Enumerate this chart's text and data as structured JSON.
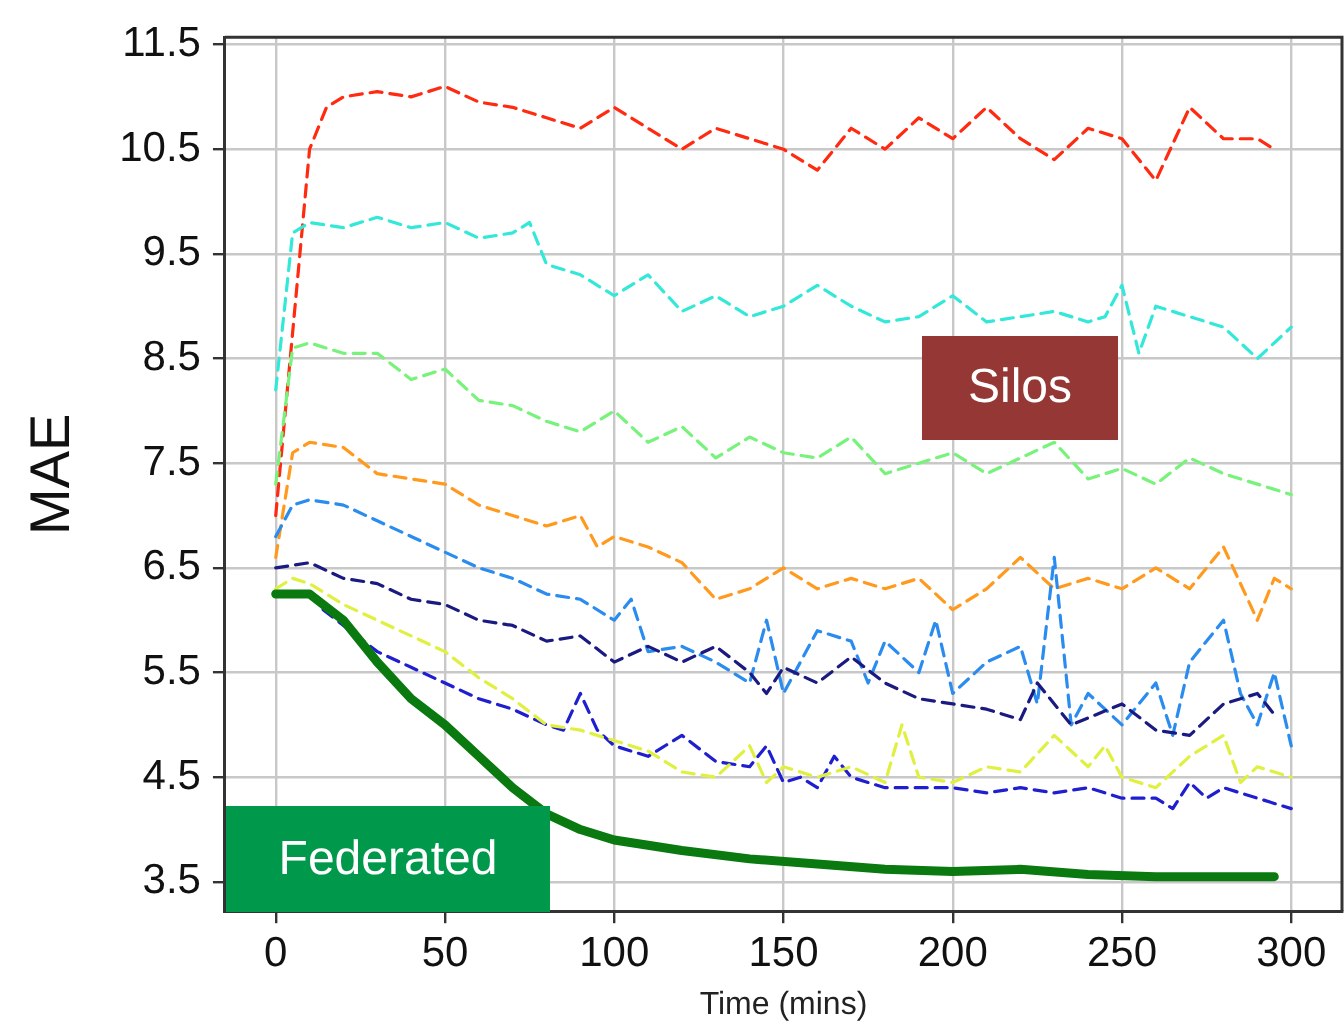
{
  "chart_data": {
    "type": "line",
    "xlabel": "Time (mins)",
    "ylabel": "MAE",
    "xlim": [
      -15,
      315
    ],
    "xticks": [
      0,
      50,
      100,
      150,
      200,
      250,
      300
    ],
    "ylim": [
      3.22,
      11.57
    ],
    "yticks": [
      3.5,
      4.5,
      5.5,
      6.5,
      7.5,
      8.5,
      9.5,
      10.5,
      11.5
    ],
    "grid": true,
    "legend": false,
    "marker": "none",
    "line_style": "dashed",
    "annotations": [
      "Silos",
      "Federated"
    ],
    "series": [
      {
        "color": "#ff2a10",
        "x": [
          0,
          10,
          15,
          20,
          30,
          40,
          50,
          60,
          70,
          80,
          90,
          100,
          110,
          120,
          130,
          140,
          150,
          160,
          170,
          180,
          190,
          200,
          210,
          220,
          230,
          240,
          250,
          260,
          270,
          280,
          290,
          295
        ],
        "values": [
          7.0,
          10.5,
          10.9,
          11.0,
          11.05,
          11.0,
          11.1,
          10.95,
          10.9,
          10.8,
          10.7,
          10.9,
          10.7,
          10.5,
          10.7,
          10.6,
          10.5,
          10.3,
          10.7,
          10.5,
          10.8,
          10.6,
          10.9,
          10.6,
          10.4,
          10.7,
          10.6,
          10.2,
          10.9,
          10.6,
          10.6,
          10.5
        ]
      },
      {
        "color": "#33e8d8",
        "x": [
          0,
          5,
          10,
          20,
          30,
          40,
          50,
          60,
          70,
          75,
          80,
          90,
          100,
          110,
          120,
          130,
          140,
          150,
          160,
          170,
          180,
          190,
          200,
          210,
          220,
          230,
          240,
          245,
          250,
          255,
          260,
          280,
          290,
          300
        ],
        "values": [
          8.2,
          9.7,
          9.8,
          9.75,
          9.85,
          9.75,
          9.8,
          9.65,
          9.7,
          9.8,
          9.4,
          9.3,
          9.1,
          9.3,
          8.95,
          9.1,
          8.9,
          9.0,
          9.2,
          9.0,
          8.85,
          8.9,
          9.1,
          8.85,
          8.9,
          8.95,
          8.85,
          8.9,
          9.2,
          8.55,
          9.0,
          8.8,
          8.5,
          8.8
        ]
      },
      {
        "color": "#77f27a",
        "x": [
          0,
          5,
          10,
          20,
          30,
          40,
          50,
          60,
          70,
          80,
          90,
          100,
          110,
          120,
          130,
          140,
          150,
          160,
          170,
          180,
          190,
          200,
          210,
          220,
          230,
          240,
          250,
          260,
          270,
          280,
          290,
          300
        ],
        "values": [
          7.3,
          8.6,
          8.65,
          8.55,
          8.55,
          8.3,
          8.4,
          8.1,
          8.05,
          7.9,
          7.8,
          8.0,
          7.7,
          7.85,
          7.55,
          7.75,
          7.6,
          7.55,
          7.75,
          7.4,
          7.5,
          7.6,
          7.4,
          7.55,
          7.7,
          7.35,
          7.45,
          7.3,
          7.55,
          7.4,
          7.3,
          7.2
        ]
      },
      {
        "color": "#ff9a1f",
        "x": [
          0,
          5,
          10,
          20,
          30,
          40,
          50,
          60,
          70,
          80,
          90,
          95,
          100,
          110,
          120,
          130,
          140,
          150,
          160,
          170,
          180,
          190,
          200,
          210,
          220,
          230,
          240,
          250,
          260,
          270,
          280,
          290,
          295,
          300
        ],
        "values": [
          6.6,
          7.6,
          7.7,
          7.65,
          7.4,
          7.35,
          7.3,
          7.1,
          7.0,
          6.9,
          7.0,
          6.7,
          6.8,
          6.7,
          6.55,
          6.2,
          6.3,
          6.5,
          6.3,
          6.4,
          6.3,
          6.4,
          6.1,
          6.3,
          6.6,
          6.3,
          6.4,
          6.3,
          6.5,
          6.3,
          6.7,
          6.0,
          6.4,
          6.3
        ]
      },
      {
        "color": "#2b8cf0",
        "x": [
          0,
          5,
          10,
          20,
          30,
          40,
          50,
          60,
          70,
          80,
          90,
          100,
          105,
          110,
          120,
          130,
          140,
          145,
          150,
          160,
          170,
          175,
          180,
          190,
          195,
          200,
          210,
          220,
          225,
          230,
          235,
          240,
          250,
          260,
          265,
          270,
          280,
          285,
          290,
          295,
          300
        ],
        "values": [
          6.8,
          7.1,
          7.15,
          7.1,
          6.95,
          6.8,
          6.65,
          6.5,
          6.4,
          6.25,
          6.2,
          6.0,
          6.2,
          5.7,
          5.75,
          5.6,
          5.4,
          6.0,
          5.3,
          5.9,
          5.8,
          5.4,
          5.8,
          5.5,
          6.0,
          5.3,
          5.6,
          5.75,
          5.2,
          6.6,
          5.0,
          5.3,
          5.0,
          5.4,
          4.9,
          5.6,
          6.0,
          5.3,
          5.0,
          5.5,
          4.8
        ]
      },
      {
        "color": "#1a1a80",
        "x": [
          0,
          10,
          20,
          30,
          40,
          50,
          60,
          70,
          80,
          90,
          100,
          110,
          120,
          130,
          140,
          145,
          150,
          160,
          170,
          180,
          190,
          200,
          210,
          220,
          225,
          235,
          250,
          260,
          270,
          280,
          290,
          295
        ],
        "values": [
          6.5,
          6.55,
          6.4,
          6.35,
          6.2,
          6.15,
          6.0,
          5.95,
          5.8,
          5.85,
          5.6,
          5.75,
          5.6,
          5.75,
          5.5,
          5.3,
          5.55,
          5.4,
          5.65,
          5.4,
          5.25,
          5.2,
          5.15,
          5.05,
          5.4,
          5.0,
          5.2,
          4.95,
          4.9,
          5.2,
          5.3,
          5.1
        ]
      },
      {
        "color": "#1f1fd0",
        "x": [
          14,
          20,
          30,
          40,
          50,
          60,
          70,
          80,
          85,
          90,
          95,
          100,
          110,
          120,
          130,
          140,
          145,
          150,
          155,
          160,
          165,
          170,
          180,
          190,
          200,
          210,
          220,
          230,
          240,
          250,
          260,
          265,
          270,
          275,
          280,
          290,
          300
        ],
        "values": [
          6.1,
          5.95,
          5.7,
          5.55,
          5.4,
          5.25,
          5.15,
          5.0,
          4.95,
          5.3,
          4.95,
          4.8,
          4.7,
          4.9,
          4.65,
          4.6,
          4.8,
          4.45,
          4.5,
          4.4,
          4.7,
          4.5,
          4.4,
          4.4,
          4.4,
          4.35,
          4.4,
          4.35,
          4.4,
          4.3,
          4.3,
          4.2,
          4.45,
          4.3,
          4.4,
          4.3,
          4.2
        ]
      },
      {
        "color": "#e0f040",
        "x": [
          0,
          5,
          10,
          20,
          30,
          40,
          50,
          60,
          70,
          80,
          90,
          100,
          110,
          120,
          130,
          140,
          145,
          150,
          160,
          170,
          180,
          185,
          190,
          200,
          210,
          220,
          230,
          240,
          245,
          250,
          260,
          270,
          280,
          285,
          290,
          300
        ],
        "values": [
          6.3,
          6.4,
          6.35,
          6.15,
          6.0,
          5.85,
          5.7,
          5.45,
          5.25,
          5.0,
          4.95,
          4.85,
          4.75,
          4.55,
          4.5,
          4.8,
          4.45,
          4.6,
          4.5,
          4.6,
          4.45,
          5.0,
          4.5,
          4.45,
          4.6,
          4.55,
          4.9,
          4.6,
          4.8,
          4.5,
          4.4,
          4.7,
          4.9,
          4.45,
          4.6,
          4.5
        ]
      },
      {
        "color": "#0a7a10",
        "line_style": "solid",
        "x": [
          0,
          10,
          20,
          30,
          40,
          50,
          60,
          70,
          80,
          90,
          100,
          120,
          140,
          160,
          180,
          200,
          220,
          240,
          260,
          280,
          295
        ],
        "values": [
          6.25,
          6.25,
          6.0,
          5.6,
          5.25,
          5.0,
          4.7,
          4.4,
          4.15,
          4.0,
          3.9,
          3.8,
          3.72,
          3.67,
          3.62,
          3.6,
          3.62,
          3.57,
          3.55,
          3.55,
          3.55
        ]
      }
    ]
  }
}
